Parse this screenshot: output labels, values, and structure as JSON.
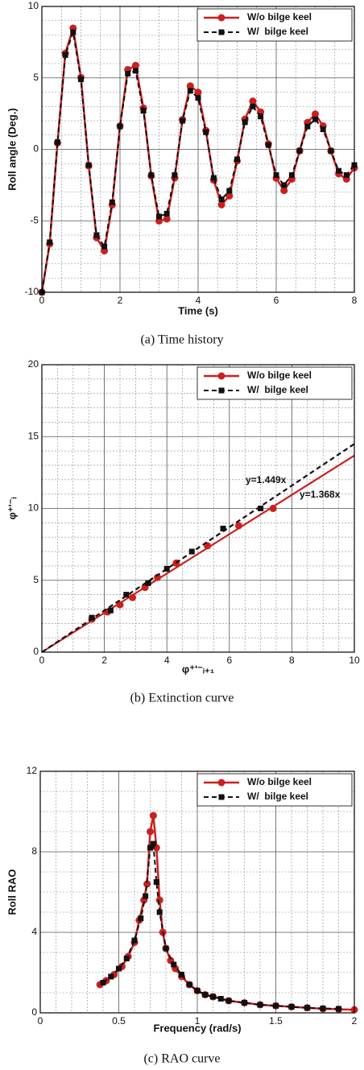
{
  "chart_data": [
    {
      "type": "line",
      "x_label": "Time (s)",
      "y_label": "Roll angle (Deg.)",
      "caption": "(a)  Time history",
      "xlim": [
        0,
        8
      ],
      "ylim": [
        -10,
        10
      ],
      "xticks": [
        0,
        2,
        4,
        6,
        8
      ],
      "yticks": [
        -10,
        -5,
        0,
        5,
        10
      ],
      "grid": true,
      "legend": "upper right",
      "series": [
        {
          "name": "W/o bilge keel",
          "color": "#cc1f1f",
          "marker": "circle",
          "dashed": false,
          "x": [
            0,
            0.2,
            0.4,
            0.6,
            0.8,
            1,
            1.2,
            1.4,
            1.6,
            1.8,
            2,
            2.2,
            2.4,
            2.6,
            2.8,
            3,
            3.2,
            3.4,
            3.6,
            3.8,
            4,
            4.2,
            4.4,
            4.6,
            4.8,
            5,
            5.2,
            5.4,
            5.6,
            5.8,
            6,
            6.2,
            6.4,
            6.6,
            6.8,
            7,
            7.2,
            7.4,
            7.6,
            7.8,
            8
          ],
          "values": [
            -10,
            -6.62,
            0.45,
            6.72,
            8.48,
            5.03,
            -1.16,
            -6.18,
            -7.1,
            -3.89,
            1.64,
            5.58,
            5.87,
            2.89,
            -1.86,
            -5.01,
            -4.87,
            -2,
            2.08,
            4.44,
            3.99,
            1.32,
            -2.15,
            -3.88,
            -3.26,
            -0.81,
            2.11,
            3.37,
            2.62,
            0.38,
            -2.02,
            -2.88,
            -2.08,
            -0.1,
            1.88,
            2.47,
            1.64,
            -0.11,
            -1.71,
            -2.08,
            -1.29
          ]
        },
        {
          "name": "W/  bilge keel",
          "color": "#111111",
          "marker": "square",
          "dashed": true,
          "x": [
            0,
            0.2,
            0.4,
            0.6,
            0.8,
            1,
            1.2,
            1.4,
            1.6,
            1.8,
            2,
            2.2,
            2.4,
            2.6,
            2.8,
            3,
            3.2,
            3.4,
            3.6,
            3.8,
            4,
            4.2,
            4.4,
            4.6,
            4.8,
            5,
            5.2,
            5.4,
            5.6,
            5.8,
            6,
            6.2,
            6.4,
            6.6,
            6.8,
            7,
            7.2,
            7.4,
            7.6,
            7.8,
            8
          ],
          "values": [
            -10,
            -6.5,
            0.5,
            6.6,
            8.2,
            4.9,
            -1.1,
            -6,
            -6.8,
            -3.7,
            1.6,
            5.3,
            5.5,
            2.7,
            -1.8,
            -4.7,
            -4.5,
            -1.8,
            2,
            4.1,
            3.6,
            1.2,
            -2,
            -3.5,
            -2.9,
            -0.7,
            1.9,
            3,
            2.3,
            0.3,
            -1.8,
            -2.5,
            -1.8,
            -0.1,
            1.6,
            2.1,
            1.4,
            -0.1,
            -1.5,
            -1.8,
            -1.1
          ]
        }
      ]
    },
    {
      "type": "scatter",
      "x_label": "φ⁺ʹ⁻ᵢ₊₁",
      "y_label": "φ⁺ʹ⁻ᵢ",
      "caption": "(b)  Extinction  curve",
      "xlim": [
        0,
        10
      ],
      "ylim": [
        0,
        20
      ],
      "xticks": [
        0,
        2,
        4,
        6,
        8,
        10
      ],
      "yticks": [
        0,
        5,
        10,
        15,
        20
      ],
      "grid": true,
      "legend": "upper right",
      "series": [
        {
          "name": "W/o bilge keel",
          "color": "#cc1f1f",
          "marker": "circle",
          "dashed": false,
          "x": [
            1.6,
            2.1,
            2.5,
            2.9,
            3.3,
            3.7,
            4.3,
            5.3,
            6.3,
            7.4
          ],
          "values": [
            2.3,
            2.8,
            3.3,
            3.8,
            4.5,
            5.2,
            6.2,
            7.4,
            8.8,
            10
          ],
          "fit": {
            "x": [
              0,
              10
            ],
            "values": [
              0,
              13.68
            ]
          }
        },
        {
          "name": "W/  bilge keel",
          "color": "#111111",
          "marker": "square",
          "dashed": true,
          "x": [
            1.6,
            2.2,
            2.7,
            3.4,
            4,
            4.8,
            5.8,
            7
          ],
          "values": [
            2.4,
            2.9,
            4,
            4.8,
            5.8,
            7,
            8.6,
            10
          ],
          "fit": {
            "x": [
              0,
              10
            ],
            "values": [
              0,
              14.49
            ]
          }
        }
      ],
      "annotations": [
        {
          "text": "y=1.449x",
          "color": "#111111"
        },
        {
          "text": "y=1.368x",
          "color": "#cc1f1f"
        }
      ]
    },
    {
      "type": "line",
      "x_label": "Frequency (rad/s)",
      "y_label": "Roll RAO",
      "caption": "(c)  RAO  curve",
      "xlim": [
        0,
        2
      ],
      "ylim": [
        0,
        12
      ],
      "xticks": [
        0,
        0.5,
        1,
        1.5,
        2
      ],
      "yticks": [
        0,
        4,
        8,
        12
      ],
      "grid": true,
      "legend": "upper right",
      "series": [
        {
          "name": "W/o bilge keel",
          "color": "#cc1f1f",
          "marker": "circle",
          "dashed": false,
          "x": [
            0.38,
            0.42,
            0.47,
            0.52,
            0.56,
            0.6,
            0.63,
            0.66,
            0.68,
            0.7,
            0.72,
            0.74,
            0.76,
            0.78,
            0.8,
            0.83,
            0.86,
            0.9,
            0.95,
            1,
            1.05,
            1.1,
            1.2,
            1.3,
            1.4,
            1.5,
            1.6,
            1.7,
            1.8,
            1.9,
            2
          ],
          "values": [
            1.4,
            1.6,
            1.9,
            2.3,
            2.8,
            3.5,
            4.6,
            5.6,
            6.4,
            9,
            9.8,
            8.2,
            5.6,
            4,
            3.2,
            2.6,
            2.2,
            1.8,
            1.4,
            1.1,
            0.9,
            0.8,
            0.6,
            0.5,
            0.4,
            0.35,
            0.3,
            0.25,
            0.2,
            0.18,
            0.15
          ]
        },
        {
          "name": "W/  bilge keel",
          "color": "#111111",
          "marker": "square",
          "dashed": true,
          "x": [
            0.4,
            0.45,
            0.5,
            0.55,
            0.6,
            0.64,
            0.67,
            0.7,
            0.72,
            0.74,
            0.76,
            0.8,
            0.85,
            0.9,
            0.95,
            1,
            1.05,
            1.1,
            1.15,
            1.2,
            1.3,
            1.4,
            1.5,
            1.6,
            1.7,
            1.8,
            1.9
          ],
          "values": [
            1.5,
            1.8,
            2.2,
            2.7,
            3.6,
            4.7,
            5.8,
            8.2,
            8.4,
            6.5,
            5,
            3.2,
            2.4,
            1.9,
            1.4,
            1.1,
            0.9,
            0.8,
            0.7,
            0.6,
            0.5,
            0.4,
            0.35,
            0.3,
            0.25,
            0.22,
            0.2
          ]
        }
      ]
    }
  ]
}
